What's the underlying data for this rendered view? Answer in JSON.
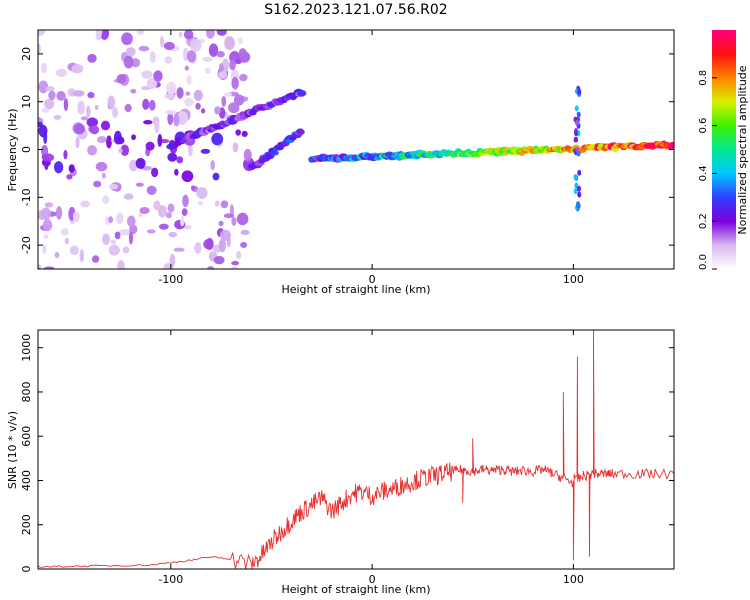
{
  "title": "S162.2023.121.07.56.R02",
  "chart_data": [
    {
      "type": "heatmap",
      "xlabel": "Height of straight line (km)",
      "ylabel": "Frequency (Hz)",
      "xlim": [
        -166,
        150
      ],
      "ylim": [
        -25,
        25
      ],
      "x_ticks": [
        -100,
        0,
        100
      ],
      "y_ticks": [
        20,
        10,
        0,
        -10,
        -20
      ],
      "colorbar": {
        "label": "Normalized spectral amplitude",
        "range": [
          0,
          1
        ],
        "ticks": [
          "0.0",
          "0.2",
          "0.4",
          "0.6",
          "0.8"
        ],
        "colors": [
          "#ffffff",
          "#d8b8f0",
          "#7a00e0",
          "#3040ff",
          "#00c8ff",
          "#00e890",
          "#40f000",
          "#d8f000",
          "#ff8000",
          "#ff1010",
          "#ff0080"
        ]
      },
      "features": [
        {
          "name": "scattered noise",
          "x_range": [
            -166,
            -60
          ],
          "freq_range": [
            -25,
            25
          ],
          "amplitude": 0.12
        },
        {
          "name": "upper branch",
          "x0": -100,
          "f0": 1,
          "x1": -35,
          "f1": 12,
          "amplitude": 0.2
        },
        {
          "name": "lower branch",
          "x0": -60,
          "f0": -4,
          "x1": -35,
          "f1": 4,
          "amplitude": 0.25
        },
        {
          "name": "main band",
          "x0": -30,
          "f0": -2,
          "x1": 150,
          "f1": 1,
          "amplitude": 0.85
        },
        {
          "name": "spike",
          "x": 102,
          "freq_range": [
            -13,
            13
          ],
          "amplitude": 0.3
        }
      ]
    },
    {
      "type": "line",
      "xlabel": "Height of straight line (km)",
      "ylabel": "SNR (10 * v/v)",
      "xlim": [
        -166,
        150
      ],
      "ylim": [
        0,
        1080
      ],
      "x_ticks": [
        -100,
        0,
        100
      ],
      "y_ticks": [
        0,
        200,
        400,
        600,
        800,
        1000
      ],
      "series": [
        {
          "color": "#e83030",
          "x": [
            -166,
            -150,
            -130,
            -110,
            -90,
            -80,
            -70,
            -60,
            -55,
            -50,
            -45,
            -40,
            -35,
            -30,
            -25,
            -20,
            -15,
            -10,
            -5,
            0,
            5,
            10,
            15,
            20,
            25,
            30,
            35,
            40,
            45,
            50,
            55,
            60,
            65,
            70,
            75,
            80,
            85,
            90,
            95,
            100,
            105,
            110,
            115,
            120,
            130,
            140,
            150
          ],
          "y": [
            10,
            12,
            15,
            18,
            40,
            55,
            45,
            20,
            60,
            120,
            170,
            220,
            260,
            290,
            320,
            260,
            300,
            340,
            350,
            330,
            350,
            360,
            380,
            395,
            410,
            420,
            430,
            440,
            450,
            440,
            450,
            445,
            450,
            440,
            445,
            440,
            450,
            430,
            410,
            390,
            420,
            430,
            430,
            430,
            430,
            430,
            430
          ]
        }
      ],
      "spikes": [
        {
          "x": 45,
          "y": 300
        },
        {
          "x": 50,
          "y": 590
        },
        {
          "x": 95,
          "y": 800
        },
        {
          "x": 102,
          "y": 960
        },
        {
          "x": 110,
          "y": 1080
        },
        {
          "x": 100,
          "y": 40
        },
        {
          "x": 108,
          "y": 55
        }
      ]
    }
  ]
}
